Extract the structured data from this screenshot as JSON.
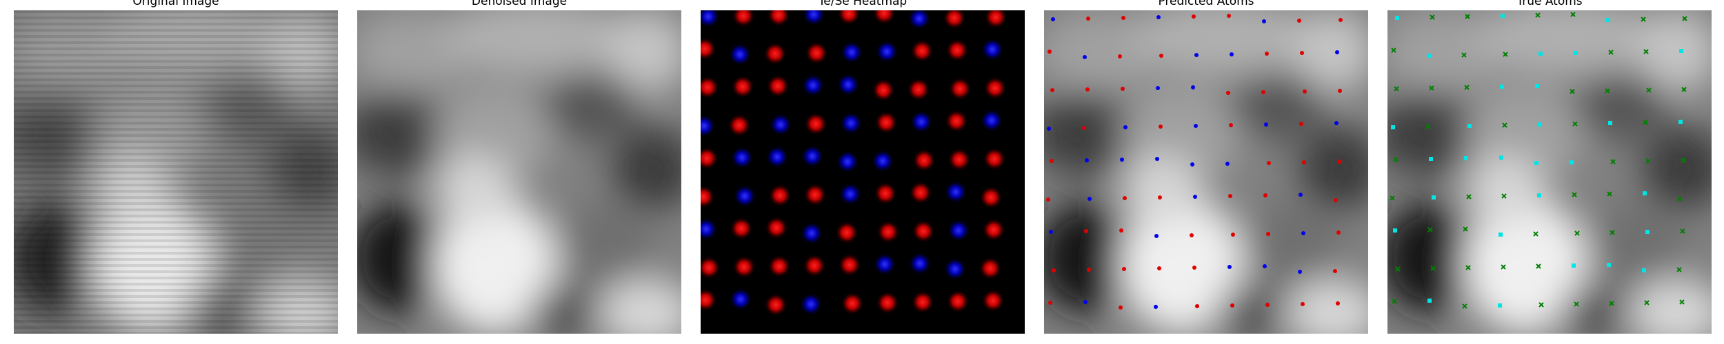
{
  "figure": {
    "panels": [
      {
        "title": "Original Image"
      },
      {
        "title": "Denoised Image"
      },
      {
        "title": "Te/Se Heatmap"
      },
      {
        "title": "Predicted Atoms"
      },
      {
        "title": "True Atoms"
      }
    ]
  },
  "colors": {
    "background": "#ffffff",
    "heatmap_background": "#000000",
    "te_color": "#ff0000",
    "se_color": "#0000ff",
    "predicted_te_color": "#e00000",
    "predicted_se_color": "#0000ee",
    "true_atom_green": "#008000",
    "true_atom_cyan": "#00e5e5"
  }
}
